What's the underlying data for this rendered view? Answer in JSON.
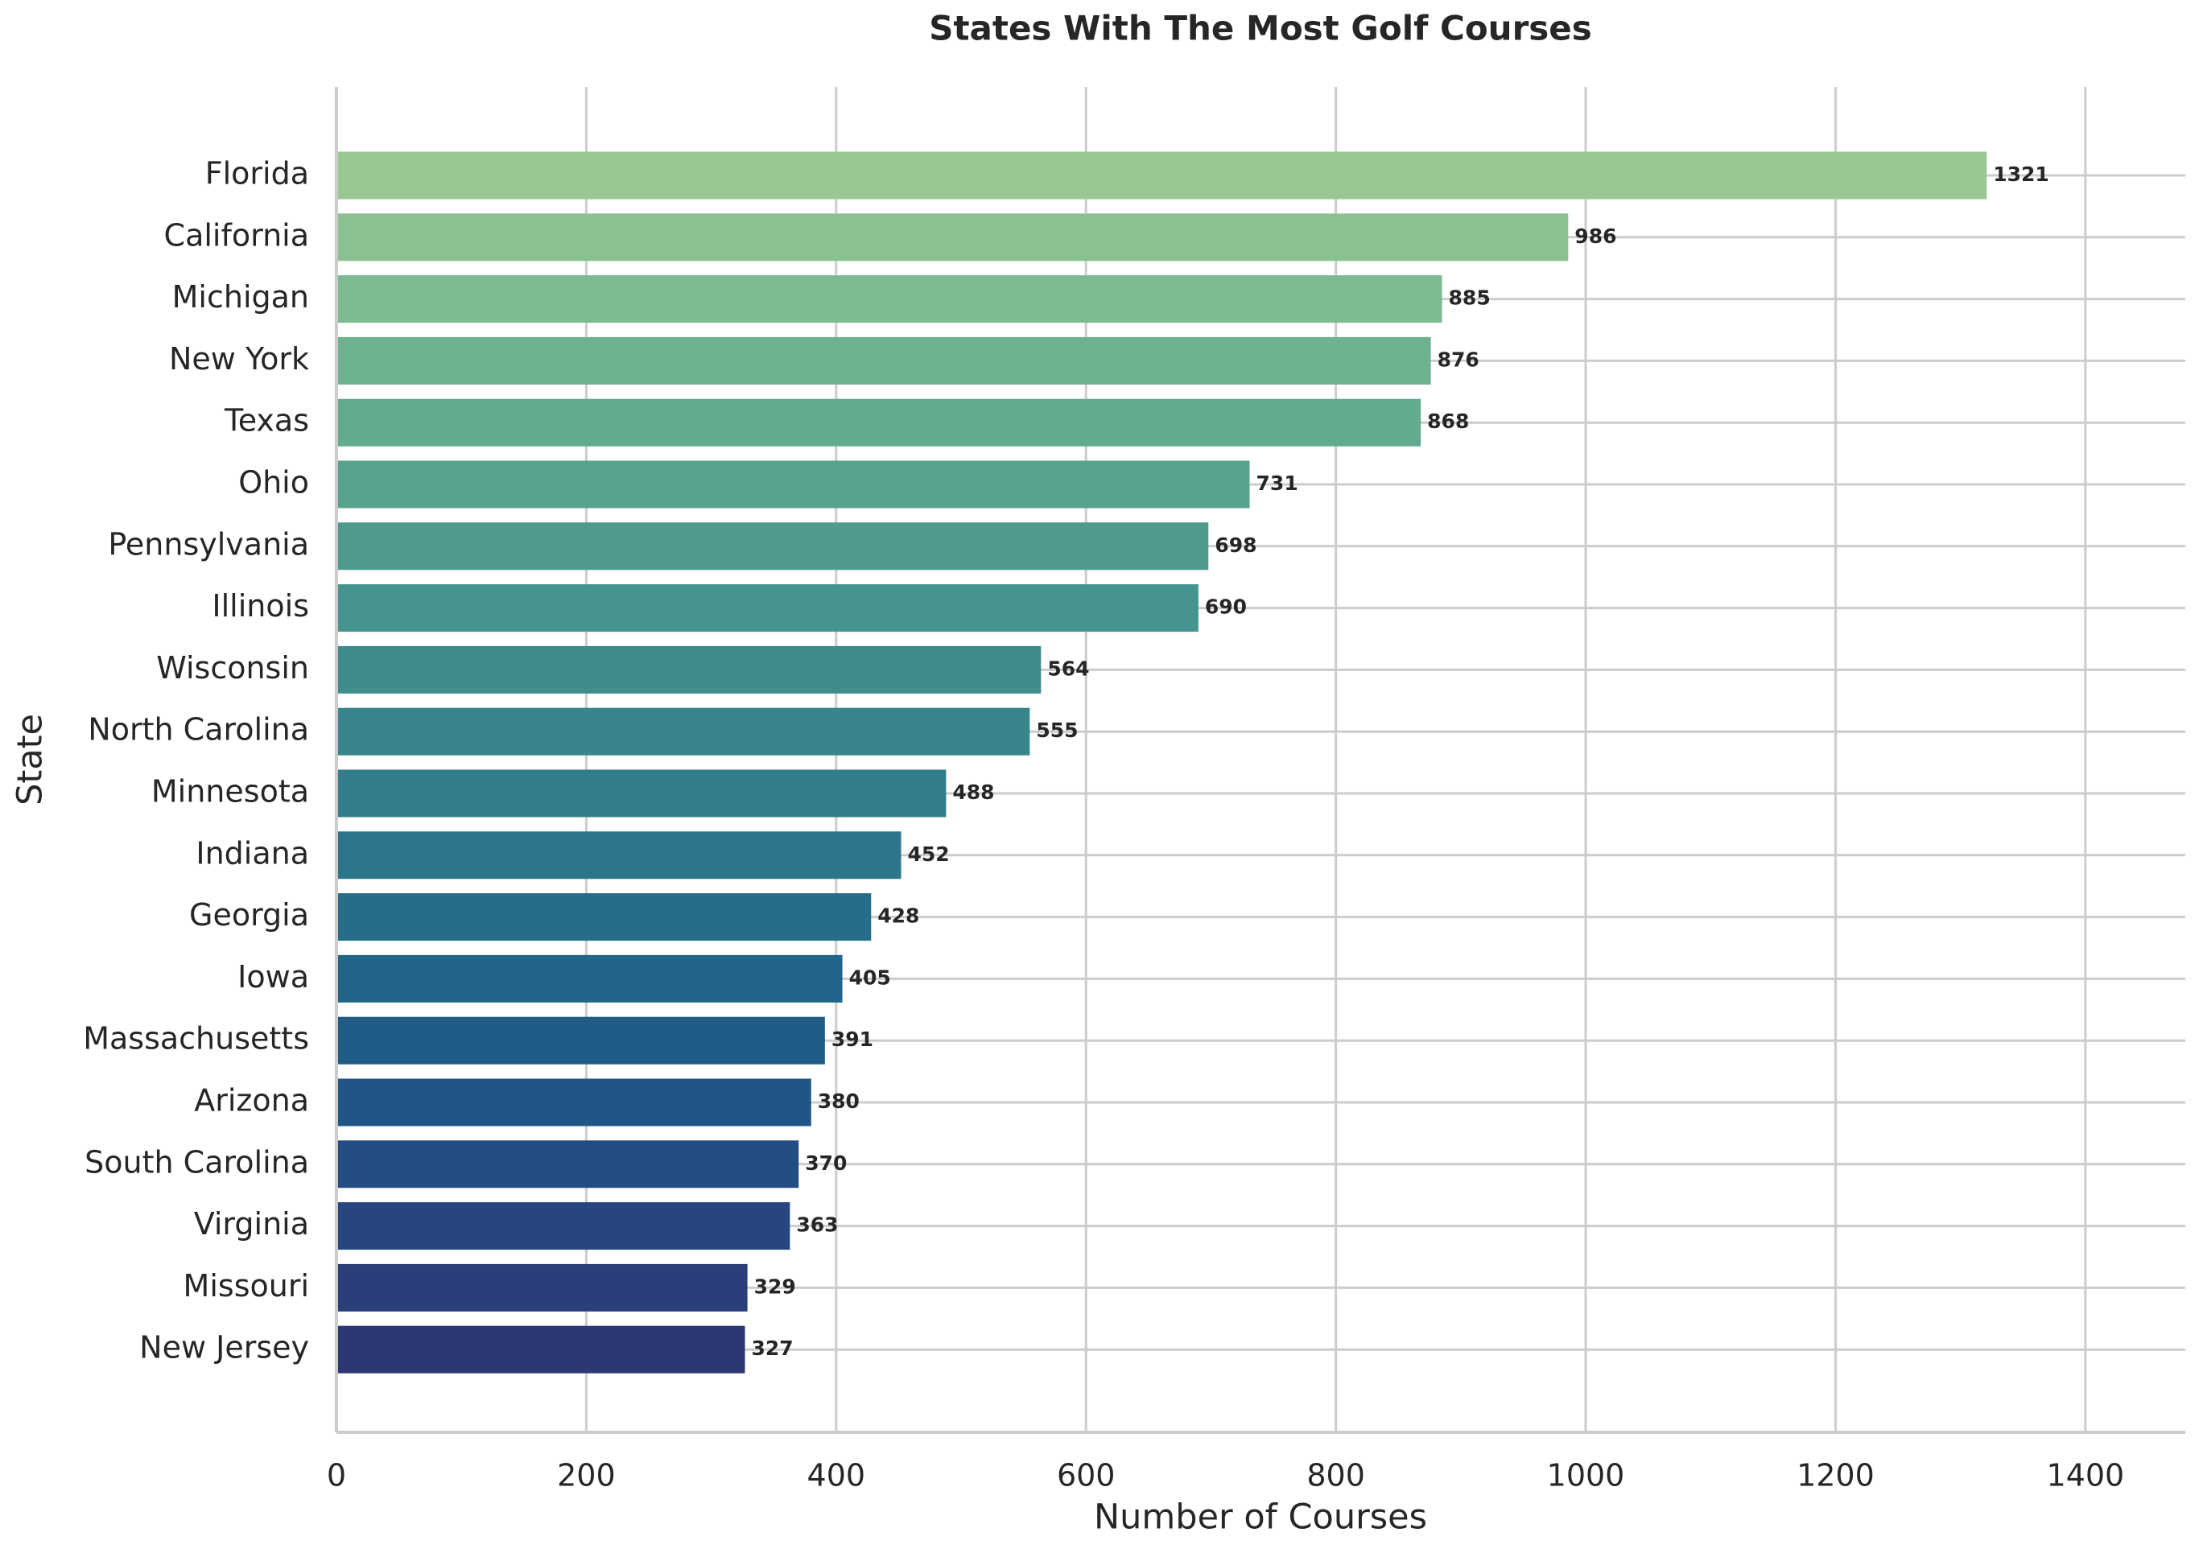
{
  "chart_data": {
    "type": "barh",
    "title": "States With The Most Golf Courses",
    "x_label": "Number of Courses",
    "y_label": "State",
    "categories": [
      "Florida",
      "California",
      "Michigan",
      "New York",
      "Texas",
      "Ohio",
      "Pennsylvania",
      "Illinois",
      "Wisconsin",
      "North Carolina",
      "Minnesota",
      "Indiana",
      "Georgia",
      "Iowa",
      "Massachusetts",
      "Arizona",
      "South Carolina",
      "Virginia",
      "Missouri",
      "New Jersey"
    ],
    "values": [
      1321,
      986,
      885,
      876,
      868,
      731,
      698,
      690,
      564,
      555,
      488,
      452,
      428,
      405,
      391,
      380,
      370,
      363,
      329,
      327
    ],
    "colors": [
      "#99c791",
      "#8bc191",
      "#7dba91",
      "#6fb290",
      "#63ab8f",
      "#58a38e",
      "#4e9b8e",
      "#46948e",
      "#3f8c8d",
      "#39858c",
      "#327d8b",
      "#2c758a",
      "#266d89",
      "#216588",
      "#1f5d87",
      "#215585",
      "#234d82",
      "#27457e",
      "#2a3e79",
      "#2d3774"
    ],
    "xlim": [
      0,
      1480
    ],
    "xticks": [
      0,
      200,
      400,
      600,
      800,
      1000,
      1200,
      1400
    ],
    "grid": true
  }
}
